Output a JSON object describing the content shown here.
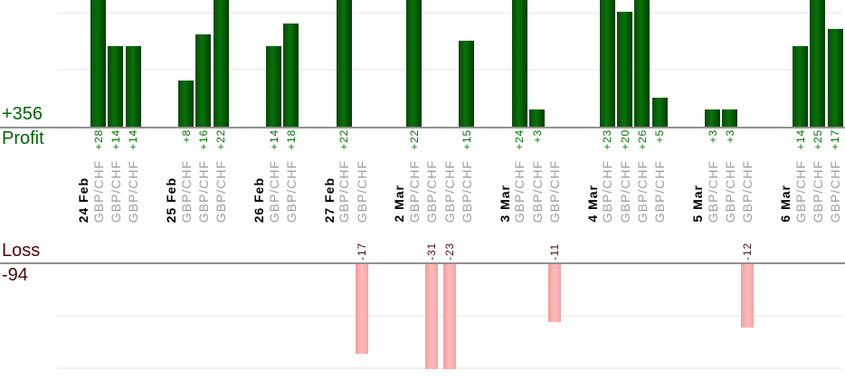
{
  "chart_data": {
    "type": "bar",
    "description": "Daily trade profit and loss bar chart, one bar per trade, grouped by date. Profit bars grow up from the Profit axis; loss bars hang down from the Loss axis.",
    "profit_section": {
      "total_label": "+356",
      "axis_label": "Profit",
      "text_color": "#006600",
      "value_label_color": "#007a00",
      "bar_gradient": [
        "#0a4a0a",
        "#077407",
        "#013c01"
      ],
      "gridline_values": [
        10,
        20
      ],
      "ylim_visible": [
        0,
        22
      ]
    },
    "loss_section": {
      "total_label": "-94",
      "axis_label": "Loss",
      "text_color": "#4d0505",
      "value_label_color": "#5a0f0f",
      "bar_gradient": [
        "#f59c9c",
        "#ffbcbc",
        "#f8a2a2"
      ],
      "gridline_values": [
        -10,
        -20
      ],
      "ylim_visible": [
        0,
        -20
      ]
    },
    "date_label_color": "#000000",
    "symbol_label_color": "#9e9e9e",
    "axis_line_color": "#919191",
    "gridline_color": "#f1f1f1",
    "groups": [
      {
        "date": "24 Feb",
        "trades": [
          {
            "symbol": "GBP/CHF",
            "value": 28,
            "label": "+28"
          },
          {
            "symbol": "GBP/CHF",
            "value": 14,
            "label": "+14"
          },
          {
            "symbol": "GBP/CHF",
            "value": 14,
            "label": "+14"
          }
        ]
      },
      {
        "date": "25 Feb",
        "trades": [
          {
            "symbol": "GBP/CHF",
            "value": 8,
            "label": "+8"
          },
          {
            "symbol": "GBP/CHF",
            "value": 16,
            "label": "+16"
          },
          {
            "symbol": "GBP/CHF",
            "value": 22,
            "label": "+22"
          }
        ]
      },
      {
        "date": "26 Feb",
        "trades": [
          {
            "symbol": "GBP/CHF",
            "value": 14,
            "label": "+14"
          },
          {
            "symbol": "GBP/CHF",
            "value": 18,
            "label": "+18"
          }
        ]
      },
      {
        "date": "27 Feb",
        "trades": [
          {
            "symbol": "GBP/CHF",
            "value": 22,
            "label": "+22"
          },
          {
            "symbol": "GBP/CHF",
            "value": -17,
            "label": "-17"
          }
        ]
      },
      {
        "date": "2 Mar",
        "trades": [
          {
            "symbol": "GBP/CHF",
            "value": 22,
            "label": "+22"
          },
          {
            "symbol": "GBP/CHF",
            "value": -31,
            "label": "-31"
          },
          {
            "symbol": "GBP/CHF",
            "value": -23,
            "label": "-23"
          },
          {
            "symbol": "GBP/CHF",
            "value": 15,
            "label": "+15"
          }
        ]
      },
      {
        "date": "3 Mar",
        "trades": [
          {
            "symbol": "GBP/CHF",
            "value": 24,
            "label": "+24"
          },
          {
            "symbol": "GBP/CHF",
            "value": 3,
            "label": "+3"
          },
          {
            "symbol": "GBP/CHF",
            "value": -11,
            "label": "-11"
          }
        ]
      },
      {
        "date": "4 Mar",
        "trades": [
          {
            "symbol": "GBP/CHF",
            "value": 23,
            "label": "+23"
          },
          {
            "symbol": "GBP/CHF",
            "value": 20,
            "label": "+20"
          },
          {
            "symbol": "GBP/CHF",
            "value": 26,
            "label": "+26"
          },
          {
            "symbol": "GBP/CHF",
            "value": 5,
            "label": "+5"
          }
        ]
      },
      {
        "date": "5 Mar",
        "trades": [
          {
            "symbol": "GBP/CHF",
            "value": 3,
            "label": "+3"
          },
          {
            "symbol": "GBP/CHF",
            "value": 3,
            "label": "+3"
          },
          {
            "symbol": "GBP/CHF",
            "value": -12,
            "label": "-12"
          }
        ]
      },
      {
        "date": "6 Mar",
        "trades": [
          {
            "symbol": "GBP/CHF",
            "value": 14,
            "label": "+14"
          },
          {
            "symbol": "GBP/CHF",
            "value": 25,
            "label": "+25"
          },
          {
            "symbol": "GBP/CHF",
            "value": 17,
            "label": "+17"
          }
        ]
      }
    ]
  }
}
